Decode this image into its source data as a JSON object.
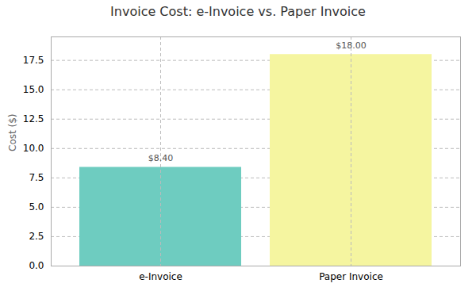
{
  "chart_data": {
    "type": "bar",
    "title": "Invoice Cost: e-Invoice vs. Paper Invoice",
    "ylabel": "Cost ($)",
    "categories": [
      "e-Invoice",
      "Paper Invoice"
    ],
    "values": [
      8.4,
      18.0
    ],
    "value_labels": [
      "$8.40",
      "$18.00"
    ],
    "data_labels": true,
    "colors": [
      "#6eccc0",
      "#f5f5a0"
    ],
    "ylim": [
      0,
      19.5
    ],
    "yticks": [
      {
        "value": 0.0,
        "label": "0.0"
      },
      {
        "value": 2.5,
        "label": "2.5"
      },
      {
        "value": 5.0,
        "label": "5.0"
      },
      {
        "value": 7.5,
        "label": "7.5"
      },
      {
        "value": 10.0,
        "label": "10.0"
      },
      {
        "value": 12.5,
        "label": "12.5"
      },
      {
        "value": 15.0,
        "label": "15.0"
      },
      {
        "value": 17.5,
        "label": "17.5"
      }
    ],
    "grid": true
  }
}
